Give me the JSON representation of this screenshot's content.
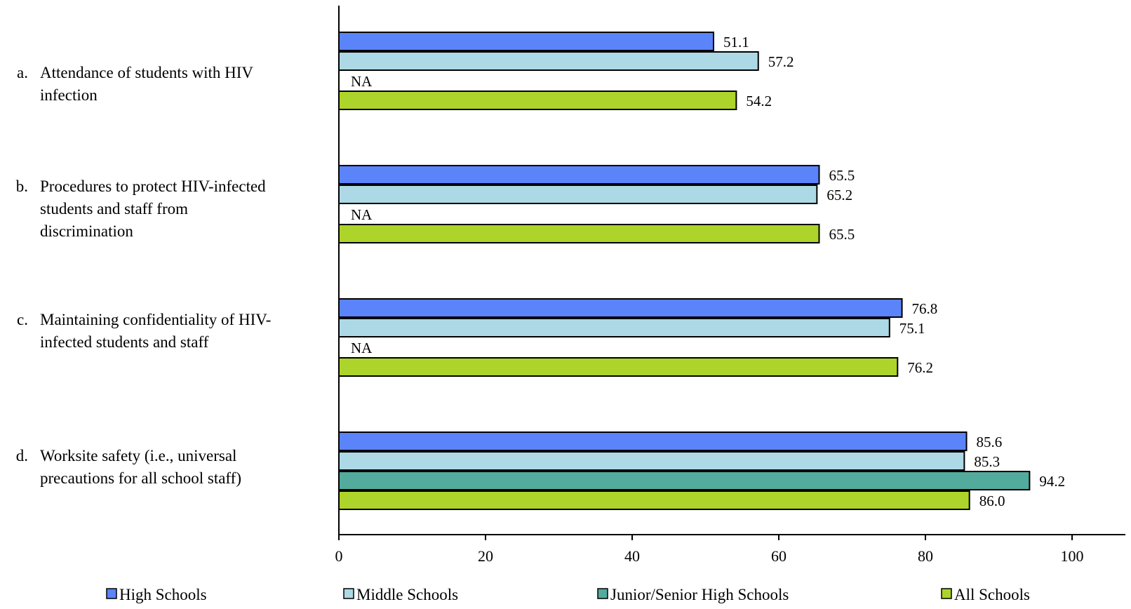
{
  "chart_data": {
    "type": "bar",
    "orientation": "horizontal",
    "categories": [
      {
        "letter": "a.",
        "lines": [
          "Attendance of students with HIV",
          "infection"
        ]
      },
      {
        "letter": "b.",
        "lines": [
          "Procedures to protect HIV-infected",
          "students and staff from",
          "discrimination"
        ]
      },
      {
        "letter": "c.",
        "lines": [
          "Maintaining confidentiality of HIV-",
          "infected students and staff"
        ]
      },
      {
        "letter": "d.",
        "lines": [
          "Worksite safety (i.e., universal",
          "precautions for all school staff)"
        ]
      }
    ],
    "series": [
      {
        "name": "High Schools",
        "color": "#5b84fa",
        "values": [
          51.1,
          65.5,
          76.8,
          85.6
        ],
        "labels": [
          "51.1",
          "65.5",
          "76.8",
          "85.6"
        ]
      },
      {
        "name": "Middle Schools",
        "color": "#add8e6",
        "values": [
          57.2,
          65.2,
          75.1,
          85.3
        ],
        "labels": [
          "57.2",
          "65.2",
          "75.1",
          "85.3"
        ]
      },
      {
        "name": "Junior/Senior High Schools",
        "color": "#52ab9c",
        "values": [
          null,
          null,
          null,
          94.2
        ],
        "labels": [
          "NA",
          "NA",
          "NA",
          "94.2"
        ]
      },
      {
        "name": "All Schools",
        "color": "#add42a",
        "values": [
          54.2,
          65.5,
          76.2,
          86.0
        ],
        "labels": [
          "54.2",
          "65.5",
          "76.2",
          "86.0"
        ]
      }
    ],
    "xlim": [
      0,
      100
    ],
    "xticks": [
      "0",
      "20",
      "40",
      "60",
      "80",
      "100"
    ],
    "grid": false,
    "legend_position": "bottom"
  }
}
